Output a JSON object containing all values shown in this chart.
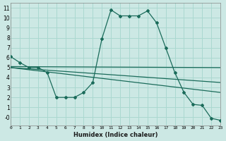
{
  "xlabel": "Humidex (Indice chaleur)",
  "background_color": "#cce8e4",
  "grid_color": "#aad8d0",
  "line_color": "#1a6b5a",
  "series1_x": [
    0,
    1,
    2,
    3,
    4,
    5,
    6,
    7,
    8,
    9,
    10,
    11,
    12,
    13,
    14,
    15,
    16,
    17,
    18,
    19,
    20,
    21,
    22,
    23
  ],
  "series1_y": [
    6.1,
    5.5,
    5.0,
    5.0,
    4.5,
    2.0,
    2.0,
    2.0,
    2.5,
    3.5,
    7.9,
    10.8,
    10.2,
    10.2,
    10.2,
    10.7,
    9.5,
    7.0,
    4.5,
    2.5,
    1.3,
    1.2,
    -0.1,
    -0.3
  ],
  "series2_x": [
    0,
    23
  ],
  "series2_y": [
    5.1,
    5.0
  ],
  "series3_x": [
    0,
    23
  ],
  "series3_y": [
    5.0,
    3.5
  ],
  "series4_x": [
    0,
    23
  ],
  "series4_y": [
    5.0,
    2.5
  ],
  "xlim": [
    0,
    23
  ],
  "ylim": [
    -0.8,
    11.5
  ],
  "yticks": [
    0,
    1,
    2,
    3,
    4,
    5,
    6,
    7,
    8,
    9,
    10,
    11
  ],
  "ytick_labels": [
    "-0",
    "1",
    "2",
    "3",
    "4",
    "5",
    "6",
    "7",
    "8",
    "9",
    "10",
    "11"
  ],
  "xtick_labels": [
    "0",
    "1",
    "2",
    "3",
    "4",
    "5",
    "6",
    "7",
    "8",
    "9",
    "10",
    "11",
    "12",
    "13",
    "14",
    "15",
    "16",
    "17",
    "18",
    "19",
    "20",
    "21",
    "22",
    "23"
  ]
}
